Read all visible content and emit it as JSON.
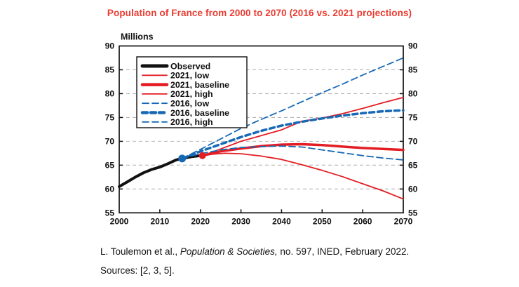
{
  "title": "Population of France from 2000 to 2070 (2016 vs. 2021 projections)",
  "caption": {
    "line1_pre": "L. Toulemon et al., ",
    "line1_italic": "Population & Societies,",
    "line1_post": " no. 597, INED, February 2022.",
    "line2": "Sources: [2, 3, 5]."
  },
  "colors": {
    "title_red": "#e93a30",
    "red": "#e31d23",
    "blue": "#1769b5",
    "black": "#111111",
    "grid": "#b5b5b5"
  },
  "chart_data": {
    "type": "line",
    "title": "Population of France from 2000 to 2070 (2016 vs. 2021 projections)",
    "xlabel": "",
    "ylabel": "Millions",
    "xlim": [
      2000,
      2070
    ],
    "ylim": [
      55,
      90
    ],
    "xticks": [
      2000,
      2010,
      2020,
      2030,
      2040,
      2050,
      2060,
      2070
    ],
    "yticks": [
      55,
      60,
      65,
      70,
      75,
      80,
      85,
      90
    ],
    "gridlines": [
      60,
      65,
      70,
      75,
      80,
      85
    ],
    "grid": "horizontal dashed, both y-axes labeled",
    "legend_position": "top-left inside plot",
    "series": [
      {
        "name": "Observed",
        "color": "black",
        "style": "solid",
        "width": 4,
        "points": [
          [
            2000,
            60.5
          ],
          [
            2002,
            61.5
          ],
          [
            2004,
            62.5
          ],
          [
            2006,
            63.4
          ],
          [
            2008,
            64.1
          ],
          [
            2010,
            64.6
          ],
          [
            2012,
            65.3
          ],
          [
            2014,
            66.1
          ],
          [
            2015.5,
            66.4
          ],
          [
            2018,
            66.8
          ],
          [
            2021,
            67.1
          ]
        ]
      },
      {
        "name": "2021, low",
        "color": "red",
        "style": "solid",
        "width": 1.8,
        "points": [
          [
            2020.5,
            67.0
          ],
          [
            2023,
            67.3
          ],
          [
            2026,
            67.5
          ],
          [
            2030,
            67.4
          ],
          [
            2035,
            66.9
          ],
          [
            2040,
            66.2
          ],
          [
            2045,
            65.1
          ],
          [
            2050,
            63.9
          ],
          [
            2055,
            62.6
          ],
          [
            2060,
            61.1
          ],
          [
            2065,
            59.6
          ],
          [
            2070,
            57.9
          ]
        ]
      },
      {
        "name": "2021, baseline",
        "color": "red",
        "style": "solid",
        "width": 3.5,
        "points": [
          [
            2020.5,
            67.0
          ],
          [
            2025,
            67.9
          ],
          [
            2030,
            68.5
          ],
          [
            2035,
            69.0
          ],
          [
            2040,
            69.3
          ],
          [
            2045,
            69.4
          ],
          [
            2050,
            69.2
          ],
          [
            2055,
            68.9
          ],
          [
            2060,
            68.6
          ],
          [
            2065,
            68.4
          ],
          [
            2070,
            68.2
          ]
        ]
      },
      {
        "name": "2021, high",
        "color": "red",
        "style": "solid",
        "width": 1.8,
        "points": [
          [
            2020.5,
            67.0
          ],
          [
            2025,
            68.4
          ],
          [
            2030,
            70.0
          ],
          [
            2035,
            71.2
          ],
          [
            2040,
            72.4
          ],
          [
            2045,
            74.2
          ],
          [
            2050,
            74.9
          ],
          [
            2055,
            75.8
          ],
          [
            2060,
            76.9
          ],
          [
            2065,
            78.1
          ],
          [
            2070,
            79.2
          ]
        ]
      },
      {
        "name": "2016, low",
        "color": "blue",
        "style": "dashed",
        "width": 1.8,
        "dash": "9 5",
        "points": [
          [
            2015.5,
            66.4
          ],
          [
            2020,
            67.4
          ],
          [
            2025,
            68.2
          ],
          [
            2030,
            68.7
          ],
          [
            2035,
            68.9
          ],
          [
            2040,
            69.0
          ],
          [
            2045,
            68.8
          ],
          [
            2050,
            68.2
          ],
          [
            2055,
            67.6
          ],
          [
            2060,
            67.0
          ],
          [
            2065,
            66.5
          ],
          [
            2070,
            66.1
          ]
        ]
      },
      {
        "name": "2016, baseline",
        "color": "blue",
        "style": "dashed",
        "width": 3.5,
        "dash": "7 5",
        "points": [
          [
            2015.5,
            66.4
          ],
          [
            2020,
            67.9
          ],
          [
            2025,
            69.4
          ],
          [
            2030,
            70.9
          ],
          [
            2035,
            72.2
          ],
          [
            2040,
            73.3
          ],
          [
            2045,
            74.1
          ],
          [
            2050,
            74.8
          ],
          [
            2055,
            75.4
          ],
          [
            2060,
            75.9
          ],
          [
            2065,
            76.3
          ],
          [
            2070,
            76.5
          ]
        ]
      },
      {
        "name": "2016, high",
        "color": "blue",
        "style": "dashed",
        "width": 1.8,
        "dash": "9 5",
        "points": [
          [
            2015.5,
            66.4
          ],
          [
            2020,
            68.3
          ],
          [
            2025,
            70.5
          ],
          [
            2030,
            72.7
          ],
          [
            2035,
            74.6
          ],
          [
            2040,
            76.4
          ],
          [
            2045,
            78.3
          ],
          [
            2050,
            80.2
          ],
          [
            2055,
            82.0
          ],
          [
            2060,
            83.9
          ],
          [
            2065,
            85.7
          ],
          [
            2070,
            87.5
          ]
        ]
      }
    ],
    "markers": [
      {
        "name": "2016-projection-start",
        "x": 2015.5,
        "y": 66.4,
        "color": "blue",
        "r": 5.5
      },
      {
        "name": "2021-projection-start",
        "x": 2020.5,
        "y": 67.0,
        "color": "red",
        "r": 5
      }
    ],
    "legend": [
      "Observed",
      "2021, low",
      "2021, baseline",
      "2021, high",
      "2016, low",
      "2016, baseline",
      "2016, high"
    ]
  }
}
